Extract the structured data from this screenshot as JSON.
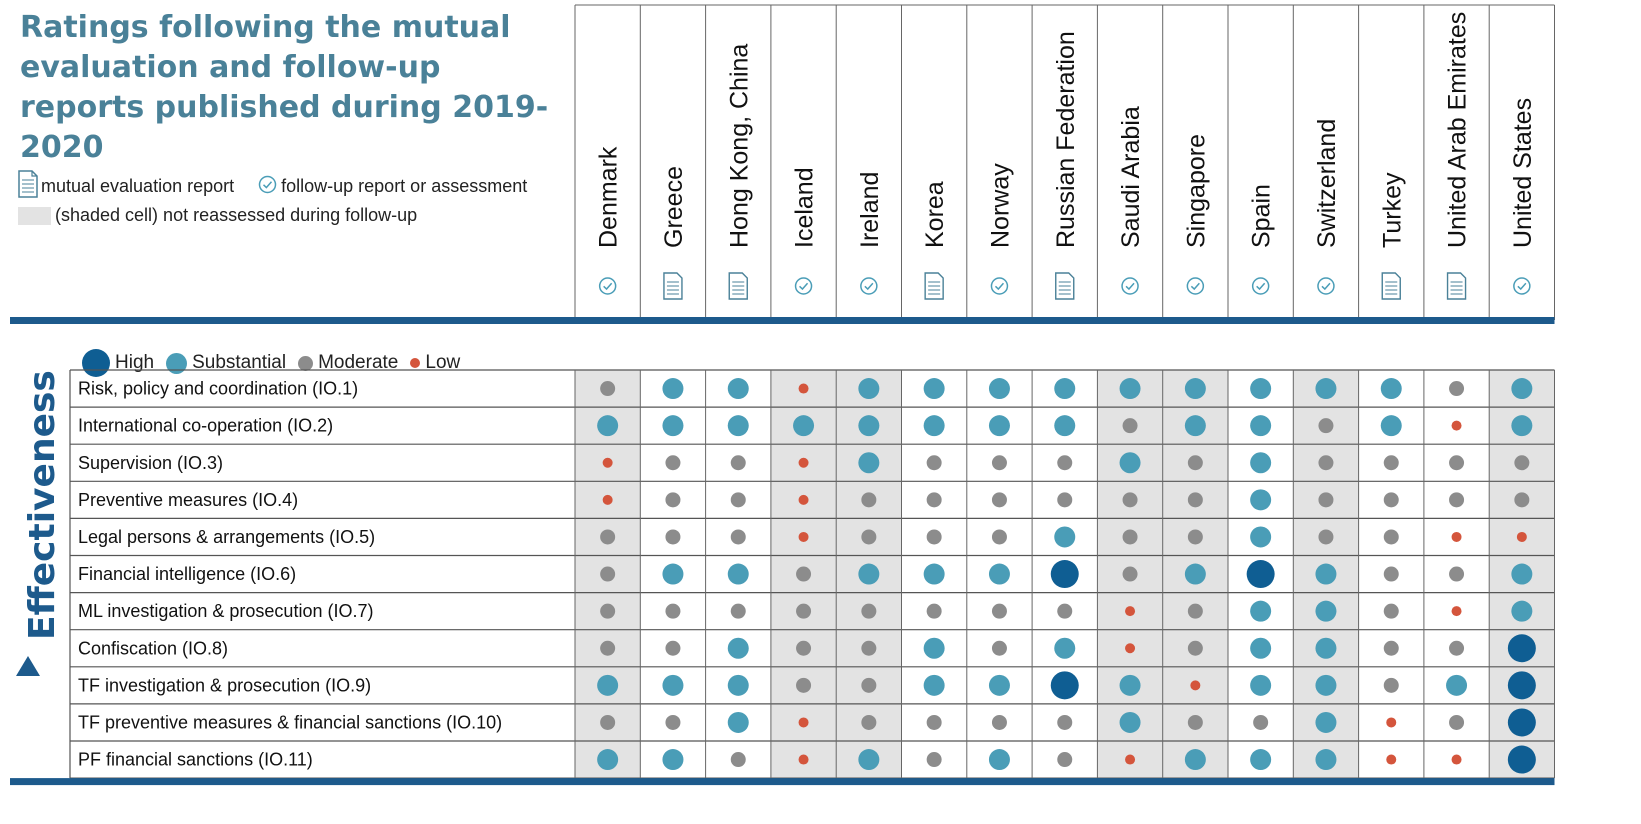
{
  "title": "Ratings following the mutual evaluation and follow-up reports published during 2019-2020",
  "report_key": {
    "mutual_evaluation": "mutual evaluation report",
    "follow_up": "follow-up report or assessment",
    "shaded": "(shaded cell) not reassessed during follow-up"
  },
  "section_label": "Effectiveness",
  "colors": {
    "High": "#0f5e93",
    "Substantial": "#4a9db7",
    "Moderate": "#8c8c8c",
    "Low": "#d4553c",
    "shade": "#e3e3e3",
    "rule": "#1d5a8c",
    "title": "#4a8198"
  },
  "legend": [
    {
      "level": "High",
      "label": "High"
    },
    {
      "level": "Substantial",
      "label": "Substantial"
    },
    {
      "level": "Moderate",
      "label": "Moderate"
    },
    {
      "level": "Low",
      "label": "Low"
    }
  ],
  "chart_data": {
    "type": "table",
    "title": "Ratings following the mutual evaluation and follow-up reports published during 2019-2020",
    "columns": [
      {
        "name": "Denmark",
        "report": "follow-up",
        "shaded": true
      },
      {
        "name": "Greece",
        "report": "mutual evaluation",
        "shaded": false
      },
      {
        "name": "Hong Kong, China",
        "report": "mutual evaluation",
        "shaded": false
      },
      {
        "name": "Iceland",
        "report": "follow-up",
        "shaded": true
      },
      {
        "name": "Ireland",
        "report": "follow-up",
        "shaded": true
      },
      {
        "name": "Korea",
        "report": "mutual evaluation",
        "shaded": false
      },
      {
        "name": "Norway",
        "report": "follow-up",
        "shaded": false
      },
      {
        "name": "Russian Federation",
        "report": "mutual evaluation",
        "shaded": false
      },
      {
        "name": "Saudi Arabia",
        "report": "follow-up",
        "shaded": true
      },
      {
        "name": "Singapore",
        "report": "follow-up",
        "shaded": true
      },
      {
        "name": "Spain",
        "report": "follow-up",
        "shaded": false
      },
      {
        "name": "Switzerland",
        "report": "follow-up",
        "shaded": true
      },
      {
        "name": "Turkey",
        "report": "mutual evaluation",
        "shaded": false
      },
      {
        "name": "United Arab Emirates",
        "report": "mutual evaluation",
        "shaded": false
      },
      {
        "name": "United States",
        "report": "follow-up",
        "shaded": true
      }
    ],
    "rows": [
      {
        "label": "Risk, policy and coordination (IO.1)",
        "ratings": [
          "Moderate",
          "Substantial",
          "Substantial",
          "Low",
          "Substantial",
          "Substantial",
          "Substantial",
          "Substantial",
          "Substantial",
          "Substantial",
          "Substantial",
          "Substantial",
          "Substantial",
          "Moderate",
          "Substantial"
        ]
      },
      {
        "label": "International co-operation (IO.2)",
        "ratings": [
          "Substantial",
          "Substantial",
          "Substantial",
          "Substantial",
          "Substantial",
          "Substantial",
          "Substantial",
          "Substantial",
          "Moderate",
          "Substantial",
          "Substantial",
          "Moderate",
          "Substantial",
          "Low",
          "Substantial"
        ]
      },
      {
        "label": "Supervision (IO.3)",
        "ratings": [
          "Low",
          "Moderate",
          "Moderate",
          "Low",
          "Substantial",
          "Moderate",
          "Moderate",
          "Moderate",
          "Substantial",
          "Moderate",
          "Substantial",
          "Moderate",
          "Moderate",
          "Moderate",
          "Moderate"
        ]
      },
      {
        "label": "Preventive measures (IO.4)",
        "ratings": [
          "Low",
          "Moderate",
          "Moderate",
          "Low",
          "Moderate",
          "Moderate",
          "Moderate",
          "Moderate",
          "Moderate",
          "Moderate",
          "Substantial",
          "Moderate",
          "Moderate",
          "Moderate",
          "Moderate"
        ]
      },
      {
        "label": "Legal persons & arrangements (IO.5)",
        "ratings": [
          "Moderate",
          "Moderate",
          "Moderate",
          "Low",
          "Moderate",
          "Moderate",
          "Moderate",
          "Substantial",
          "Moderate",
          "Moderate",
          "Substantial",
          "Moderate",
          "Moderate",
          "Low",
          "Low"
        ]
      },
      {
        "label": "Financial intelligence (IO.6)",
        "ratings": [
          "Moderate",
          "Substantial",
          "Substantial",
          "Moderate",
          "Substantial",
          "Substantial",
          "Substantial",
          "High",
          "Moderate",
          "Substantial",
          "High",
          "Substantial",
          "Moderate",
          "Moderate",
          "Substantial"
        ]
      },
      {
        "label": "ML investigation & prosecution (IO.7)",
        "ratings": [
          "Moderate",
          "Moderate",
          "Moderate",
          "Moderate",
          "Moderate",
          "Moderate",
          "Moderate",
          "Moderate",
          "Low",
          "Moderate",
          "Substantial",
          "Substantial",
          "Moderate",
          "Low",
          "Substantial"
        ]
      },
      {
        "label": "Confiscation (IO.8)",
        "ratings": [
          "Moderate",
          "Moderate",
          "Substantial",
          "Moderate",
          "Moderate",
          "Substantial",
          "Moderate",
          "Substantial",
          "Low",
          "Moderate",
          "Substantial",
          "Substantial",
          "Moderate",
          "Moderate",
          "High"
        ]
      },
      {
        "label": "TF investigation & prosecution (IO.9)",
        "ratings": [
          "Substantial",
          "Substantial",
          "Substantial",
          "Moderate",
          "Moderate",
          "Substantial",
          "Substantial",
          "High",
          "Substantial",
          "Low",
          "Substantial",
          "Substantial",
          "Moderate",
          "Substantial",
          "High"
        ]
      },
      {
        "label": "TF preventive measures & financial sanctions (IO.10)",
        "ratings": [
          "Moderate",
          "Moderate",
          "Substantial",
          "Low",
          "Moderate",
          "Moderate",
          "Moderate",
          "Moderate",
          "Substantial",
          "Moderate",
          "Moderate",
          "Substantial",
          "Low",
          "Moderate",
          "High"
        ]
      },
      {
        "label": "PF financial sanctions (IO.11)",
        "ratings": [
          "Substantial",
          "Substantial",
          "Moderate",
          "Low",
          "Substantial",
          "Moderate",
          "Substantial",
          "Moderate",
          "Low",
          "Substantial",
          "Substantial",
          "Substantial",
          "Low",
          "Low",
          "High"
        ]
      }
    ],
    "legend": [
      "High",
      "Substantial",
      "Moderate",
      "Low"
    ]
  }
}
